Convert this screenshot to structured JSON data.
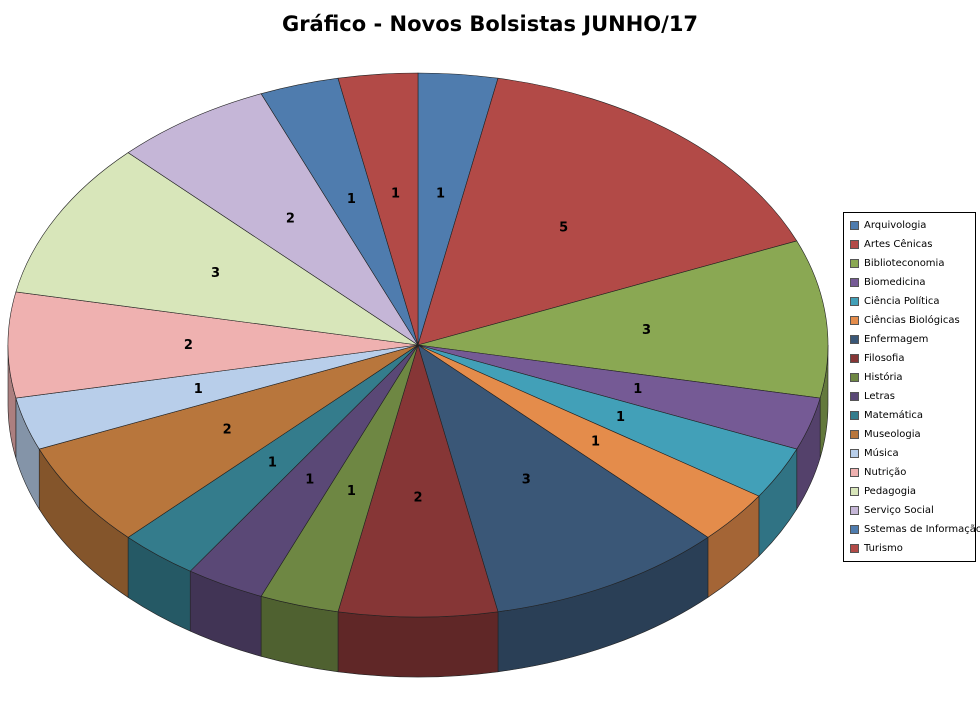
{
  "chart_data": {
    "type": "pie",
    "style": "3d",
    "title": "Gráfico - Novos Bolsistas JUNHO/17",
    "legend_position": "right",
    "categories": [
      "Arquivologia",
      "Artes Cênicas",
      "Biblioteconomia",
      "Biomedicina",
      "Ciência Política",
      "Ciências Biológicas",
      "Enfermagem",
      "Filosofia",
      "História",
      "Letras",
      "Matemática",
      "Museologia",
      "Música",
      "Nutrição",
      "Pedagogia",
      "Serviço Social",
      "Sstemas de Informação",
      "Turismo"
    ],
    "values": [
      1,
      5,
      3,
      1,
      1,
      1,
      3,
      2,
      1,
      1,
      1,
      2,
      1,
      2,
      3,
      2,
      1,
      1
    ],
    "colors": [
      "#4F7CAE",
      "#B24A47",
      "#8AA853",
      "#755A95",
      "#42A0B8",
      "#E48C4B",
      "#3A5777",
      "#863636",
      "#6E8743",
      "#5A4876",
      "#347C8C",
      "#B8763C",
      "#B8CEEA",
      "#EFB1B0",
      "#D8E6BA",
      "#C5B6D7",
      "#4F7CAE",
      "#B24A47"
    ]
  }
}
